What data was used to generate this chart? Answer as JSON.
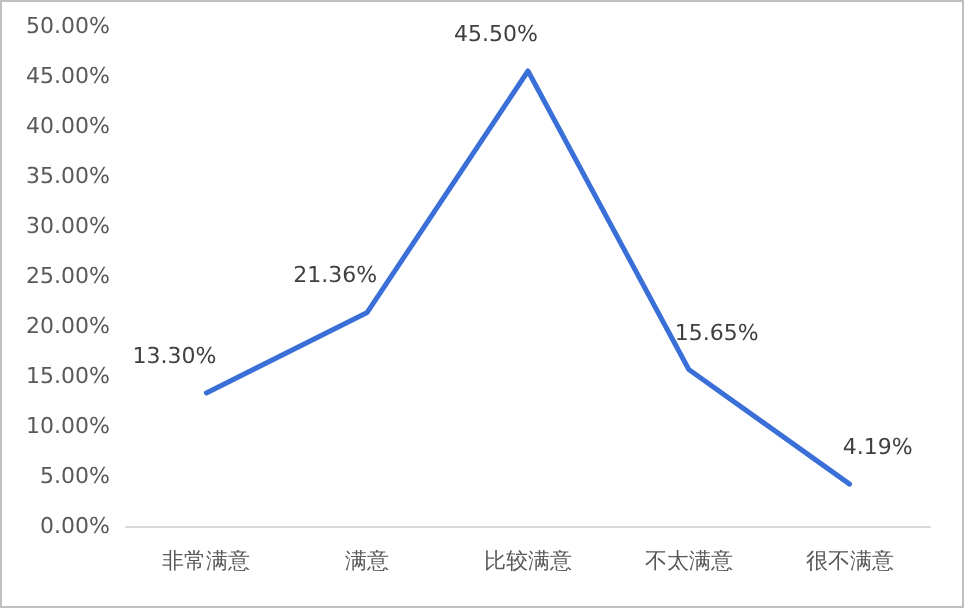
{
  "chart_data": {
    "type": "line",
    "categories": [
      "非常满意",
      "满意",
      "比较满意",
      "不太满意",
      "很不满意"
    ],
    "series": [
      {
        "color": "#3a6fd8",
        "values": [
          13.3,
          21.36,
          45.5,
          15.65,
          4.19
        ],
        "value_labels": [
          "13.30%",
          "21.36%",
          "45.50%",
          "15.65%",
          "4.19%"
        ]
      }
    ],
    "ylim": [
      0,
      50
    ],
    "yticks": [
      {
        "value": 0,
        "label": "0.00%"
      },
      {
        "value": 5,
        "label": "5.00%"
      },
      {
        "value": 10,
        "label": "10.00%"
      },
      {
        "value": 15,
        "label": "15.00%"
      },
      {
        "value": 20,
        "label": "20.00%"
      },
      {
        "value": 25,
        "label": "25.00%"
      },
      {
        "value": 30,
        "label": "30.00%"
      },
      {
        "value": 35,
        "label": "35.00%"
      },
      {
        "value": 40,
        "label": "40.00%"
      },
      {
        "value": 45,
        "label": "45.00%"
      },
      {
        "value": 50,
        "label": "50.00%"
      }
    ],
    "grid": false,
    "marker": "none",
    "line_style": "solid"
  }
}
